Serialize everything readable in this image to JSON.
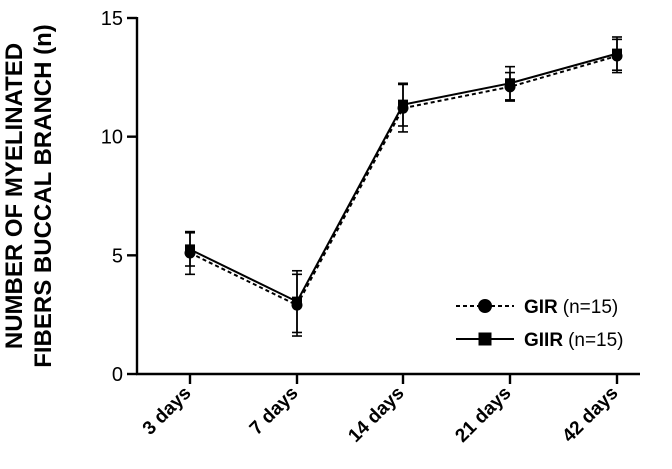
{
  "chart_data": {
    "type": "line",
    "xlabel": "",
    "ylabel_lines": [
      "NUMBER OF MYELINATED",
      "FIBERS BUCCAL BRANCH (n)"
    ],
    "categories": [
      "3 days",
      "7 days",
      "14 days",
      "21 days",
      "42 days"
    ],
    "ylim": [
      0,
      15
    ],
    "yticks": [
      0,
      5,
      10,
      15
    ],
    "series": [
      {
        "name": "GIR",
        "legend_note": "(n=15)",
        "marker": "circle",
        "line_style": "dashed",
        "color": "#000000",
        "values": [
          5.1,
          2.9,
          11.2,
          12.1,
          13.4
        ],
        "error": [
          0.9,
          1.3,
          1.0,
          0.6,
          0.7
        ]
      },
      {
        "name": "GIIR",
        "legend_note": "(n=15)",
        "marker": "square",
        "line_style": "solid",
        "color": "#000000",
        "values": [
          5.25,
          3.05,
          11.35,
          12.25,
          13.5
        ],
        "error": [
          0.7,
          1.3,
          0.9,
          0.7,
          0.7
        ]
      }
    ],
    "legend_position": "lower-right",
    "grid": false
  }
}
